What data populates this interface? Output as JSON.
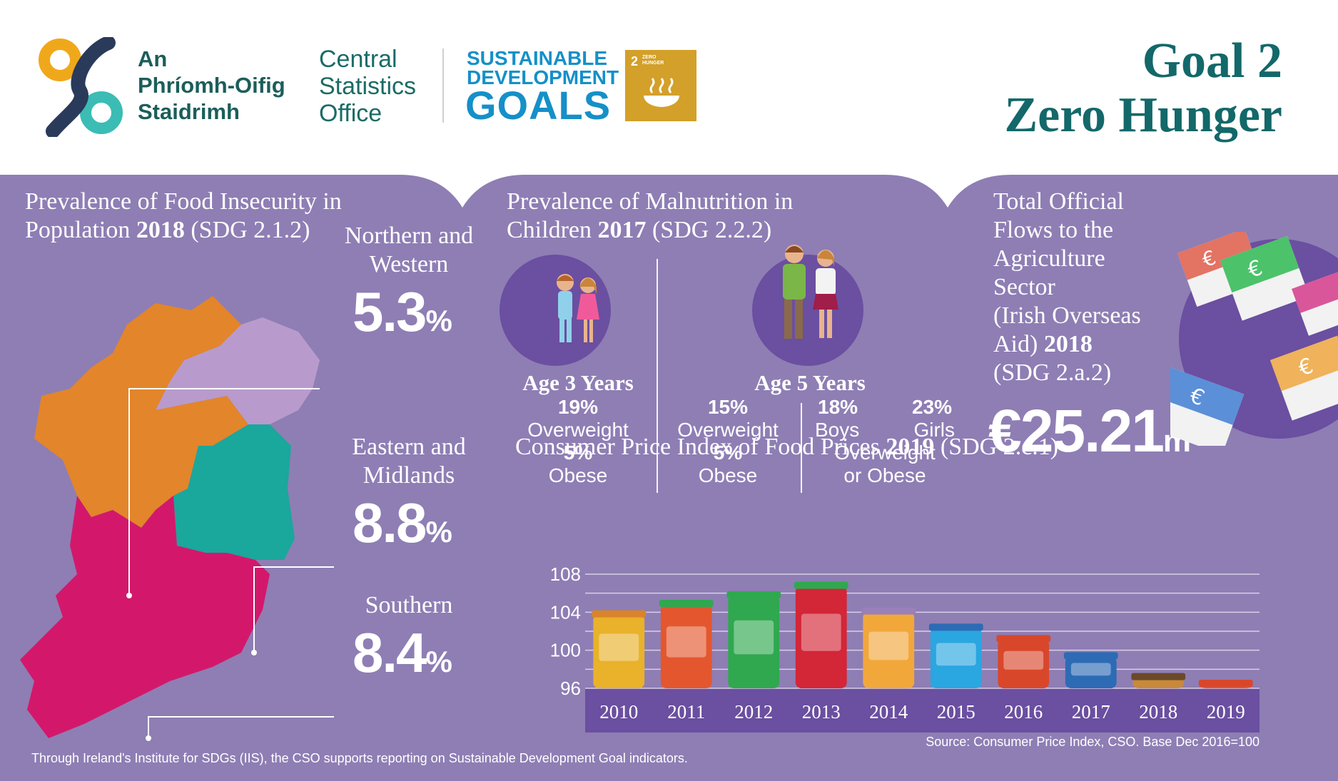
{
  "header": {
    "irish_name": [
      "An",
      "Phríomh-Oifig",
      "Staidrimh"
    ],
    "english_name": [
      "Central",
      "Statistics",
      "Office"
    ],
    "sdg_lines": [
      "SUSTAINABLE",
      "DEVELOPMENT"
    ],
    "sdg_goals": "GOALS",
    "sdg_tile": {
      "number": "2",
      "label_1": "ZERO",
      "label_2": "HUNGER"
    },
    "goal_line_1": "Goal 2",
    "goal_line_2": "Zero Hunger"
  },
  "food_insecurity": {
    "heading_1": "Prevalence of Food Insecurity in",
    "heading_2_prefix": "Population ",
    "heading_2_year": "2018",
    "heading_2_suffix": " (SDG 2.1.2)",
    "regions": [
      {
        "name_1": "Northern and",
        "name_2": "Western",
        "value": "5.3",
        "unit": "%",
        "color": "#b89bcc"
      },
      {
        "name_1": "Eastern and",
        "name_2": "Midlands",
        "value": "8.8",
        "unit": "%",
        "color": "#1aa79c"
      },
      {
        "name_1": "Southern",
        "name_2": "",
        "value": "8.4",
        "unit": "%",
        "color": "#d3186b"
      }
    ],
    "map_colors": {
      "north_west": "#e3852a",
      "northern_ireland": "#b89bcc",
      "eastern": "#1aa79c",
      "southern": "#d3186b"
    }
  },
  "malnutrition": {
    "heading_1": "Prevalence of Malnutrition in",
    "heading_2_prefix": "Children ",
    "heading_2_year": "2017",
    "heading_2_suffix": " (SDG 2.2.2)",
    "age3": {
      "title": "Age 3 Years",
      "overweight_pct": "19%",
      "overweight_label": "Overweight",
      "obese_pct": "5%",
      "obese_label": "Obese"
    },
    "age5": {
      "title": "Age 5 Years",
      "overweight_pct": "15%",
      "overweight_label": "Overweight",
      "obese_pct": "5%",
      "obese_label": "Obese",
      "boys_pct": "18%",
      "boys_label": "Boys",
      "girls_pct": "23%",
      "girls_label": "Girls",
      "combined_1": "Overweight",
      "combined_2": "or Obese"
    }
  },
  "oda": {
    "lines": [
      "Total Official",
      "Flows to the",
      "Agriculture",
      "Sector",
      "(Irish Overseas"
    ],
    "line6_prefix": "Aid) ",
    "line6_year": "2018",
    "line7": "(SDG 2.a.2)",
    "value": "€25.21",
    "unit": "m"
  },
  "cpi": {
    "heading_prefix": "Consumer Price Index of Food Prices ",
    "heading_year": "2019",
    "heading_suffix": " (SDG 2.c.1)",
    "source": "Source: Consumer Price Index, CSO. Base Dec 2016=100"
  },
  "chart_data": {
    "type": "bar",
    "title": "Consumer Price Index of Food Prices 2019 (SDG 2.c.1)",
    "categories": [
      "2010",
      "2011",
      "2012",
      "2013",
      "2014",
      "2015",
      "2016",
      "2017",
      "2018",
      "2019"
    ],
    "values": [
      104.2,
      105.3,
      106.2,
      107.2,
      104.5,
      102.8,
      101.6,
      99.8,
      97.6,
      96.9
    ],
    "y_ticks": [
      "96",
      "100",
      "104",
      "108"
    ],
    "ylim": [
      96,
      108
    ],
    "grid": true,
    "jar_colors": [
      "#e9b22a",
      "#e4572e",
      "#2fa84f",
      "#d32637",
      "#f2a73b",
      "#2aa6e0",
      "#d9472b",
      "#2d6bb5",
      "#c9893a",
      "#e0553a"
    ],
    "lid_colors": [
      "#d9842a",
      "#2fa84f",
      "#2fa84f",
      "#2fa84f",
      "#9a7fb8",
      "#2d6bb5",
      "#d9472b",
      "#2d6bb5",
      "#6b4a2a",
      "#d9472b"
    ]
  },
  "footer": {
    "note": "Through Ireland's Institute for SDGs (IIS), the CSO supports reporting on Sustainable Development Goal indicators."
  }
}
